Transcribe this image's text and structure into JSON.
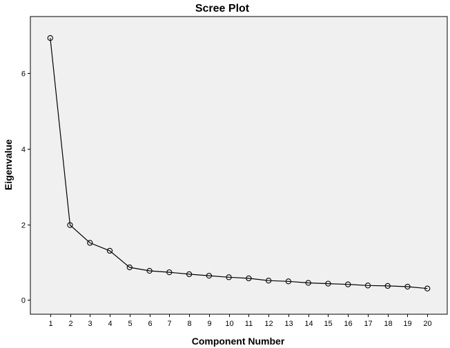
{
  "chart_data": {
    "type": "line",
    "title": "Scree Plot",
    "xlabel": "Component Number",
    "ylabel": "Eigenvalue",
    "x": [
      1,
      2,
      3,
      4,
      5,
      6,
      7,
      8,
      9,
      10,
      11,
      12,
      13,
      14,
      15,
      16,
      17,
      18,
      19,
      20
    ],
    "values": [
      6.93,
      1.98,
      1.51,
      1.3,
      0.86,
      0.77,
      0.73,
      0.68,
      0.64,
      0.6,
      0.57,
      0.51,
      0.49,
      0.45,
      0.43,
      0.41,
      0.38,
      0.37,
      0.35,
      0.3
    ],
    "xlim": [
      0,
      21
    ],
    "ylim": [
      -0.38,
      7.5
    ],
    "yticks": [
      0,
      2,
      4,
      6
    ],
    "xticks": [
      1,
      2,
      3,
      4,
      5,
      6,
      7,
      8,
      9,
      10,
      11,
      12,
      13,
      14,
      15,
      16,
      17,
      18,
      19,
      20
    ],
    "grid": false,
    "colors": {
      "plot_background": "#f0f0f0",
      "line": "#000000",
      "marker_stroke": "#000000"
    },
    "marker": "open-circle"
  }
}
